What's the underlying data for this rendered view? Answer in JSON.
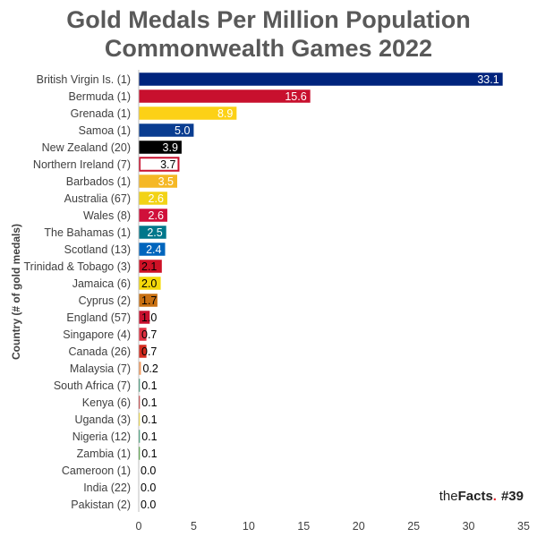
{
  "chart_data": {
    "type": "bar",
    "orientation": "horizontal",
    "title_lines": [
      "Gold Medals Per Million Population",
      "Commonwealth Games 2022"
    ],
    "xlabel": "",
    "ylabel": "Country (# of gold medals)",
    "xlim": [
      0,
      35
    ],
    "xticks": [
      0,
      5,
      10,
      15,
      20,
      25,
      30,
      35
    ],
    "grid": false,
    "categories": [
      "British Virgin Is. (1)",
      "Bermuda (1)",
      "Grenada (1)",
      "Samoa (1)",
      "New Zealand (20)",
      "Northern Ireland (7)",
      "Barbados (1)",
      "Australia (67)",
      "Wales (8)",
      "The Bahamas (1)",
      "Scotland (13)",
      "Trinidad & Tobago (3)",
      "Jamaica (6)",
      "Cyprus (2)",
      "England (57)",
      "Singapore (4)",
      "Canada (26)",
      "Malaysia (7)",
      "South Africa (7)",
      "Kenya (6)",
      "Uganda (3)",
      "Nigeria (12)",
      "Zambia (1)",
      "Cameroon (1)",
      "India (22)",
      "Pakistan (2)"
    ],
    "values": [
      33.1,
      15.6,
      8.9,
      5.0,
      3.9,
      3.7,
      3.5,
      2.6,
      2.6,
      2.5,
      2.4,
      2.1,
      2.0,
      1.7,
      1.0,
      0.7,
      0.7,
      0.2,
      0.1,
      0.1,
      0.1,
      0.1,
      0.1,
      0.0,
      0.0,
      0.0
    ],
    "value_labels": [
      "33.1",
      "15.6",
      "8.9",
      "5.0",
      "3.9",
      "3.7",
      "3.5",
      "2.6",
      "2.6",
      "2.5",
      "2.4",
      "2.1",
      "2.0",
      "1.7",
      "1.0",
      "0.7",
      "0.7",
      "0.2",
      "0.1",
      "0.1",
      "0.1",
      "0.1",
      "0.1",
      "0.0",
      "0.0",
      "0.0"
    ],
    "colors": [
      "#00247d",
      "#c8102e",
      "#fcd116",
      "#0a3d91",
      "#000000",
      "#ffffff",
      "#f5b825",
      "#f2d316",
      "#d0103a",
      "#00778b",
      "#0065bd",
      "#ce1126",
      "#f5d90a",
      "#c87012",
      "#c8102e",
      "#e03142",
      "#d52b1e",
      "#f39c62",
      "#007a4d",
      "#bb0000",
      "#fcdc04",
      "#008751",
      "#198a00",
      "#007a5e",
      "#ff9933",
      "#01411c"
    ],
    "border_colors": {
      "5": "#c8102e"
    }
  },
  "branding": {
    "prefix": "the",
    "brand": "Facts",
    "dot": ".",
    "number": "#39",
    "dot_color": "#e8262c"
  }
}
